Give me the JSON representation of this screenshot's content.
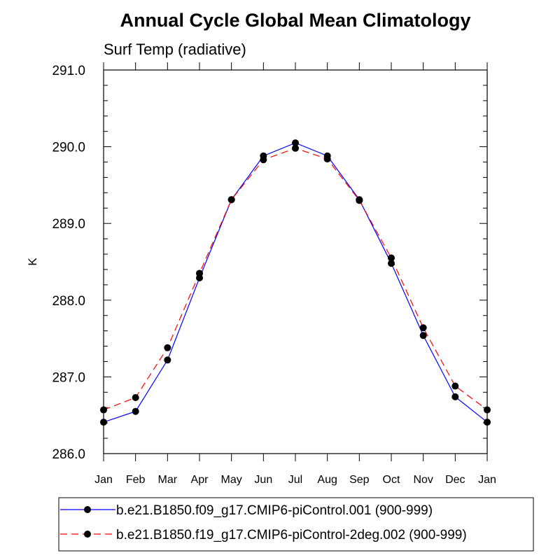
{
  "chart_data": {
    "type": "line",
    "title": "Annual Cycle Global Mean Climatology",
    "subtitle": "Surf Temp (radiative)",
    "ylabel": "K",
    "xlabel": "",
    "ylim": [
      286.0,
      291.0
    ],
    "yticks": [
      "286.0",
      "287.0",
      "288.0",
      "289.0",
      "290.0",
      "291.0"
    ],
    "categories": [
      "Jan",
      "Feb",
      "Mar",
      "Apr",
      "May",
      "Jun",
      "Jul",
      "Aug",
      "Sep",
      "Oct",
      "Nov",
      "Dec",
      "Jan"
    ],
    "legend_position": "bottom",
    "grid": false,
    "series": [
      {
        "name": "b.e21.B1850.f09_g17.CMIP6-piControl.001 (900-999)",
        "color": "#0000ff",
        "dash": "solid",
        "marker": "filled-circle",
        "values": [
          286.41,
          286.55,
          287.22,
          288.29,
          289.31,
          289.88,
          290.05,
          289.88,
          289.31,
          288.48,
          287.54,
          286.74,
          286.41
        ]
      },
      {
        "name": "b.e21.B1850.f19_g17.CMIP6-piControl-2deg.002 (900-999)",
        "color": "#ff0000",
        "dash": "dashed",
        "marker": "filled-circle",
        "values": [
          286.57,
          286.73,
          287.38,
          288.35,
          289.31,
          289.83,
          289.98,
          289.84,
          289.3,
          288.55,
          287.64,
          286.88,
          286.57
        ]
      }
    ]
  }
}
